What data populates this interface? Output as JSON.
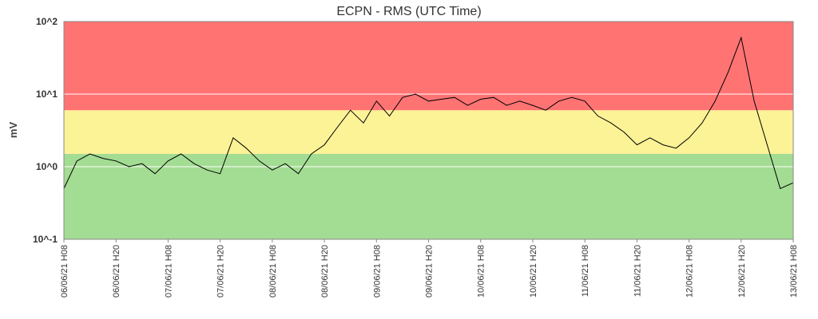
{
  "chart_data": {
    "type": "line",
    "title": "ECPN - RMS (UTC Time)",
    "xlabel": "",
    "ylabel": "mV",
    "yscale": "log",
    "ylim": [
      0.1,
      100
    ],
    "y_tick_values": [
      0.1,
      1,
      10,
      100
    ],
    "y_tick_labels": [
      "10^-1",
      "10^0",
      "10^1",
      "10^2"
    ],
    "x_tick_labels": [
      "06/06/21 H08",
      "06/06/21 H20",
      "07/06/21 H08",
      "07/06/21 H20",
      "08/06/21 H08",
      "08/06/21 H20",
      "09/06/21 H08",
      "09/06/21 H20",
      "10/06/21 H08",
      "10/06/21 H20",
      "11/06/21 H08",
      "11/06/21 H20",
      "12/06/21 H08",
      "12/06/21 H20",
      "13/06/21 H08"
    ],
    "grid": true,
    "bands": [
      {
        "from": 0.1,
        "to": 1.5,
        "color": "#a3dc93"
      },
      {
        "from": 1.5,
        "to": 6,
        "color": "#fcf296"
      },
      {
        "from": 6,
        "to": 100,
        "color": "#ff7373"
      }
    ],
    "line_color": "#000000",
    "series": [
      {
        "x": [
          "06/06/21 H08",
          "06/06/21 H11",
          "06/06/21 H14",
          "06/06/21 H17",
          "06/06/21 H20",
          "06/06/21 H23",
          "07/06/21 H02",
          "07/06/21 H05",
          "07/06/21 H08",
          "07/06/21 H11",
          "07/06/21 H14",
          "07/06/21 H17",
          "07/06/21 H20",
          "07/06/21 H23",
          "08/06/21 H02",
          "08/06/21 H05",
          "08/06/21 H08",
          "08/06/21 H11",
          "08/06/21 H14",
          "08/06/21 H17",
          "08/06/21 H20",
          "08/06/21 H23",
          "09/06/21 H02",
          "09/06/21 H05",
          "09/06/21 H08",
          "09/06/21 H11",
          "09/06/21 H14",
          "09/06/21 H17",
          "09/06/21 H20",
          "09/06/21 H23",
          "10/06/21 H02",
          "10/06/21 H05",
          "10/06/21 H08",
          "10/06/21 H11",
          "10/06/21 H14",
          "10/06/21 H17",
          "10/06/21 H20",
          "10/06/21 H23",
          "11/06/21 H02",
          "11/06/21 H05",
          "11/06/21 H08",
          "11/06/21 H11",
          "11/06/21 H14",
          "11/06/21 H17",
          "11/06/21 H20",
          "11/06/21 H23",
          "12/06/21 H02",
          "12/06/21 H05",
          "12/06/21 H08",
          "12/06/21 H11",
          "12/06/21 H14",
          "12/06/21 H17",
          "12/06/21 H20",
          "12/06/21 H23",
          "13/06/21 H02",
          "13/06/21 H05",
          "13/06/21 H08"
        ],
        "values": [
          0.5,
          1.2,
          1.5,
          1.3,
          1.2,
          1.0,
          1.1,
          0.8,
          1.2,
          1.5,
          1.1,
          0.9,
          0.8,
          2.5,
          1.8,
          1.2,
          0.9,
          1.1,
          0.8,
          1.5,
          2.0,
          3.5,
          6.0,
          4.0,
          8.0,
          5.0,
          9.0,
          10.0,
          8.0,
          8.5,
          9.0,
          7.0,
          8.5,
          9.0,
          7.0,
          8.0,
          7.0,
          6.0,
          8.0,
          9.0,
          8.0,
          5.0,
          4.0,
          3.0,
          2.0,
          2.5,
          2.0,
          1.8,
          2.5,
          4.0,
          8.0,
          20.0,
          60.0,
          8.0,
          2.0,
          0.5,
          0.6
        ]
      }
    ]
  }
}
